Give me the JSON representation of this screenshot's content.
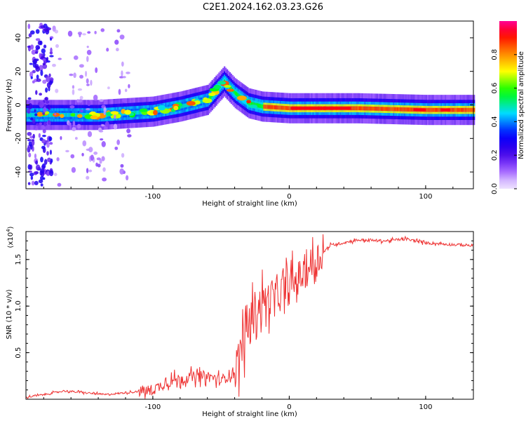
{
  "figure": {
    "title": "C2E1.2024.162.03.23.G26"
  },
  "chart_data": [
    {
      "type": "heatmap",
      "xlabel": "Height of straight line (km)",
      "ylabel": "Frequency (Hz)",
      "xlim": [
        -193,
        135
      ],
      "ylim": [
        -50,
        50
      ],
      "x_ticks": [
        -100,
        0,
        100
      ],
      "y_ticks": [
        -40,
        -20,
        0,
        20,
        40
      ],
      "colorbar": {
        "label": "Normalized spectral amplitude",
        "range": [
          0,
          1
        ],
        "ticks": [
          "0.0",
          "0.2",
          "0.4",
          "0.6",
          "0.8"
        ],
        "colors": [
          "#ffffff",
          "#6a00ff",
          "#0000ff",
          "#00ffff",
          "#00ff00",
          "#ffff00",
          "#ff8000",
          "#ff0000",
          "#ff00a0"
        ]
      },
      "ridge": {
        "description_points_x": [
          -190,
          -160,
          -140,
          -120,
          -100,
          -80,
          -60,
          -48,
          -40,
          -30,
          -20,
          0,
          50,
          100,
          135
        ],
        "frequency_hz": [
          -6,
          -6,
          -6,
          -5,
          -4,
          -1,
          3,
          14,
          7,
          1,
          -1,
          -2,
          -2,
          -3,
          -3
        ]
      }
    },
    {
      "type": "line",
      "xlabel": "Height of straight line (km)",
      "ylabel": "SNR (10 * v/v)",
      "y_multiplier": "(x10",
      "y_multiplier_exp": "4",
      "y_multiplier_close": ")",
      "xlim": [
        -193,
        135
      ],
      "ylim": [
        0,
        1.8
      ],
      "x_ticks": [
        -100,
        0,
        100
      ],
      "y_ticks": [
        "0.5",
        "1.0",
        "1.5"
      ],
      "line_color": "#ee3333",
      "series": [
        {
          "x": [
            -193,
            -180,
            -165,
            -150,
            -135,
            -120,
            -100,
            -90,
            -80,
            -70,
            -60,
            -50,
            -40,
            -35,
            -30,
            -25,
            -20,
            -10,
            0,
            10,
            20,
            30,
            50,
            70,
            85,
            100,
            120,
            135
          ],
          "y": [
            0.02,
            0.05,
            0.09,
            0.07,
            0.05,
            0.07,
            0.1,
            0.18,
            0.22,
            0.24,
            0.25,
            0.2,
            0.3,
            0.55,
            0.8,
            0.95,
            1.05,
            1.1,
            1.2,
            1.35,
            1.5,
            1.65,
            1.71,
            1.7,
            1.72,
            1.68,
            1.66,
            1.65
          ]
        }
      ]
    }
  ]
}
